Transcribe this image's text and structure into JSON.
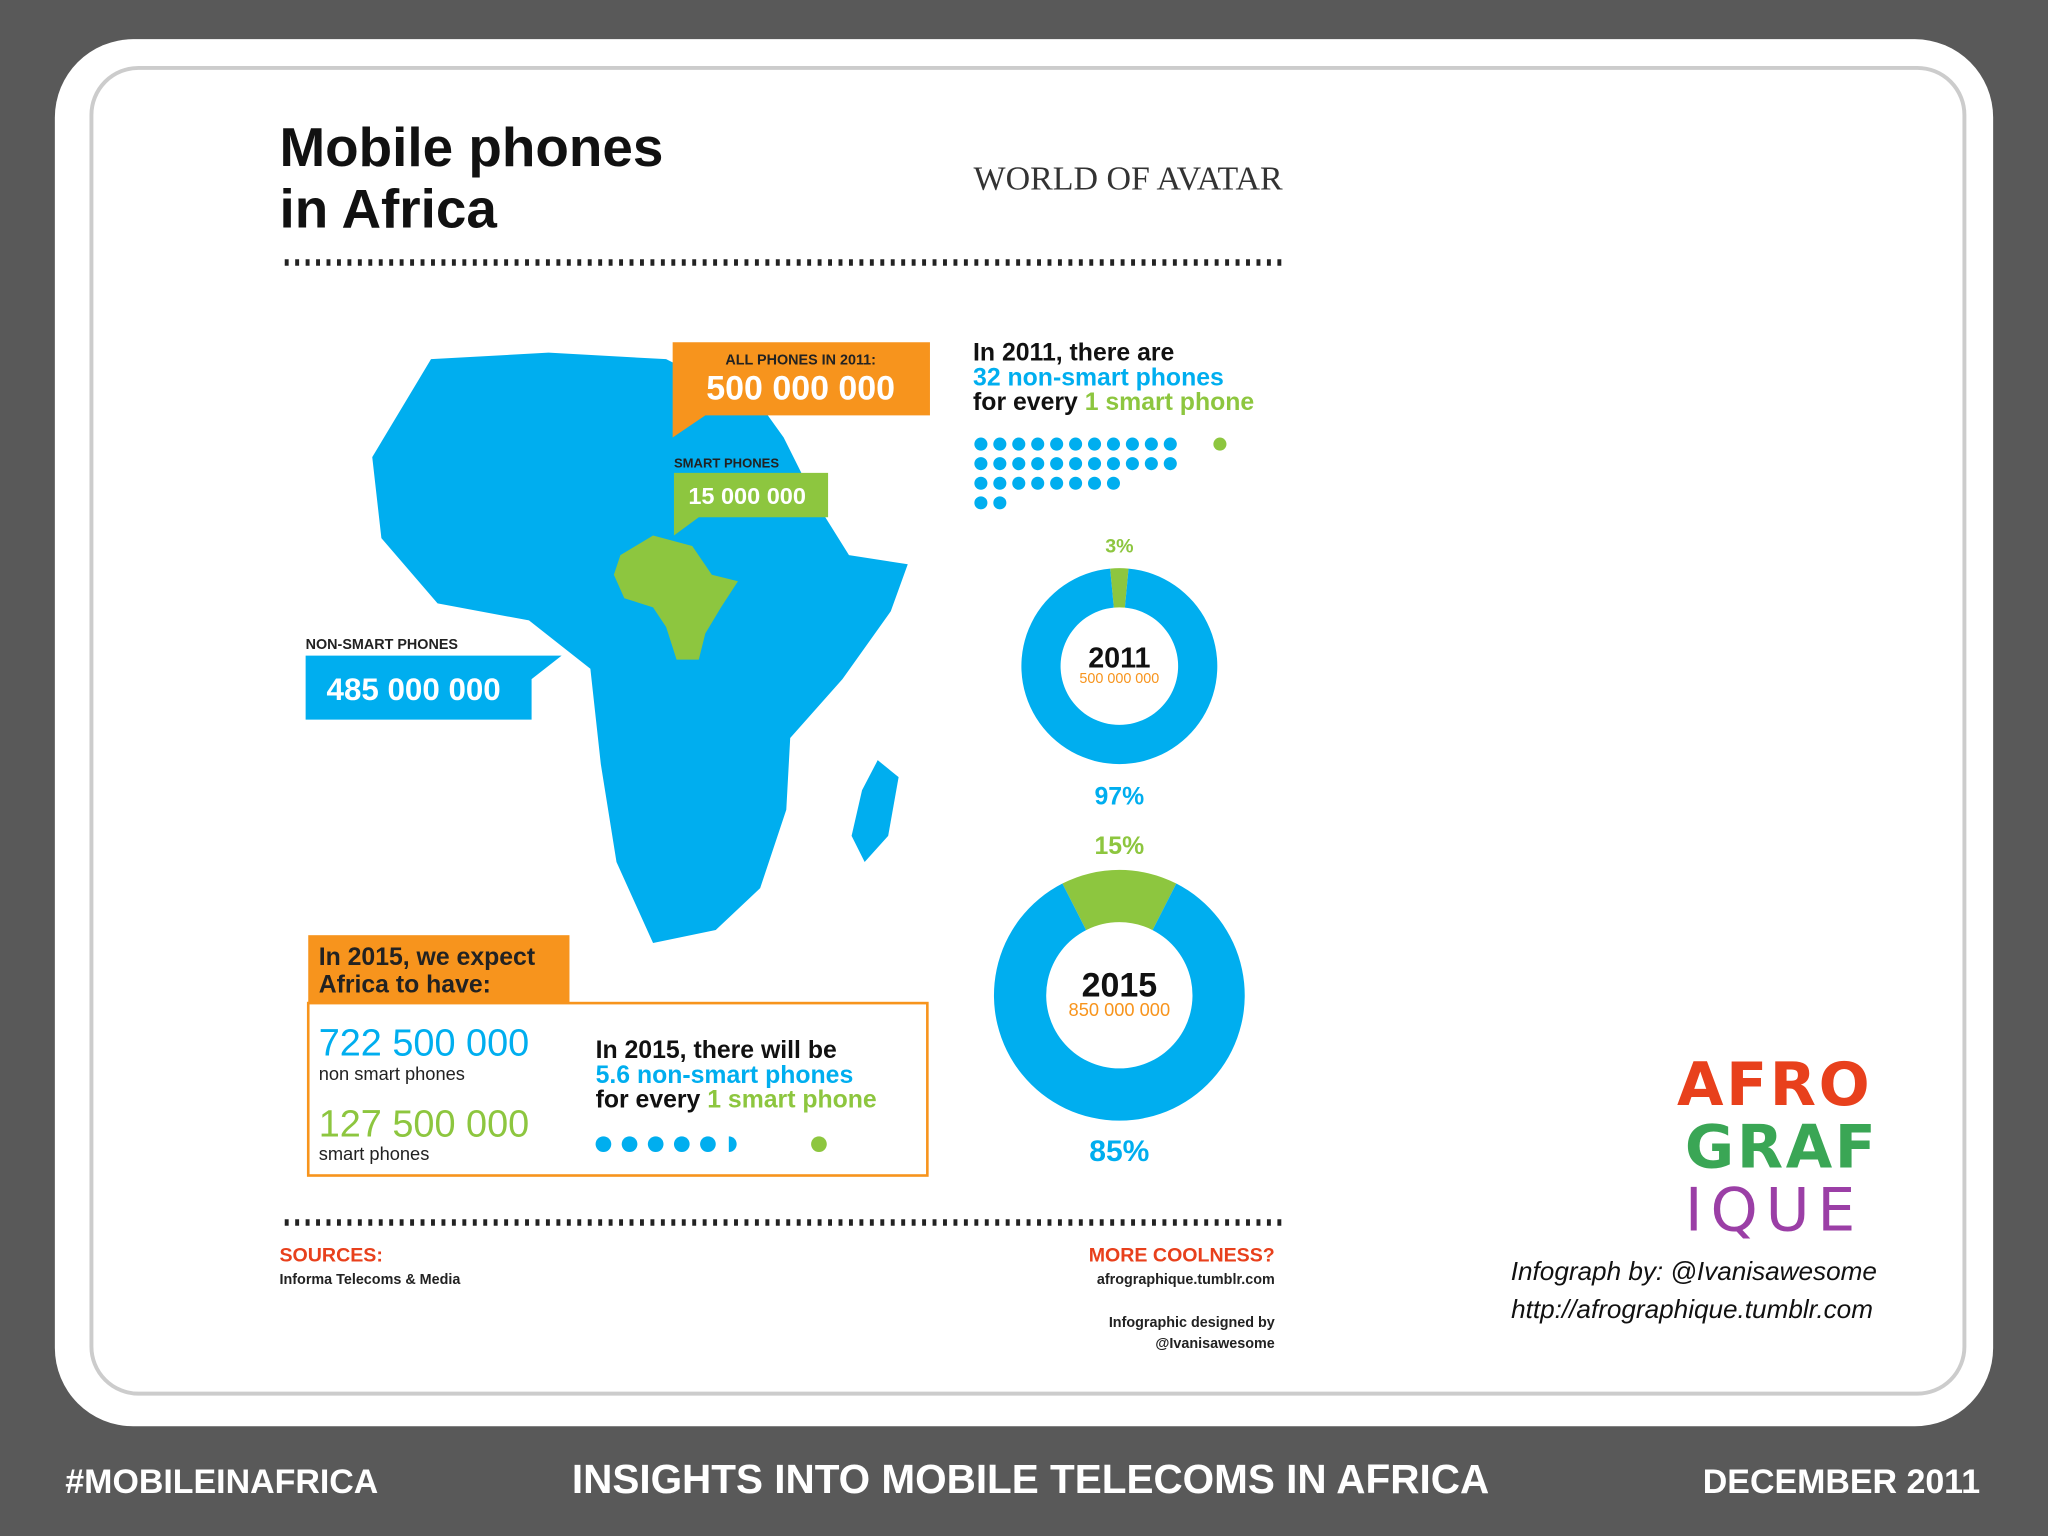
{
  "header": {
    "title_lines": [
      "Mobile phones",
      "in Africa"
    ],
    "brand": "WORLD OF AVATAR"
  },
  "callouts": {
    "all_phones": {
      "label": "ALL PHONES IN 2011:",
      "value": "500 000 000"
    },
    "smart_phones": {
      "label": "SMART PHONES",
      "value": "15 000 000"
    },
    "non_smart_phones": {
      "label": "NON-SMART PHONES",
      "value": "485 000 000"
    }
  },
  "ratio_2011": {
    "intro": "In 2011, there are",
    "non_smart": "32 non-smart phones",
    "for_every": "for every",
    "smart": "1 smart phone"
  },
  "donuts": [
    {
      "year": "2011",
      "total": "500 000 000",
      "values": [
        3,
        97
      ],
      "value_labels": [
        "3%",
        "97%"
      ],
      "colors": [
        "#8dc63f",
        "#00aeef"
      ]
    },
    {
      "year": "2015",
      "total": "850 000 000",
      "values": [
        15,
        85
      ],
      "value_labels": [
        "15%",
        "85%"
      ],
      "colors": [
        "#8dc63f",
        "#00aeef"
      ]
    }
  ],
  "forecast": {
    "heading_lines": [
      "In 2015, we expect",
      "Africa to have:"
    ],
    "non_smart_value": "722 500 000",
    "non_smart_label": "non smart phones",
    "smart_value": "127 500 000",
    "smart_label": "smart phones",
    "ratio": {
      "intro": "In 2015, there will be",
      "non_smart": "5.6 non-smart phones",
      "for_every": "for every",
      "smart": "1 smart phone"
    }
  },
  "footer": {
    "sources_title": "SOURCES:",
    "sources": "Informa Telecoms & Media",
    "more_title": "MORE COOLNESS?",
    "more_url": "afrographique.tumblr.com",
    "designed_by": "Infographic designed by",
    "designer": "@Ivanisawesome"
  },
  "credits": {
    "line1": "Infograph by: @Ivanisawesome",
    "line2": "http://afrographique.tumblr.com"
  },
  "logo": {
    "lines": [
      "AFRO",
      "GRAF",
      "IQUE"
    ]
  },
  "bottom_bar": {
    "left": "#MOBILEINAFRICA",
    "center": "INSIGHTS INTO MOBILE TELECOMS IN AFRICA",
    "right": "DECEMBER 2011"
  }
}
